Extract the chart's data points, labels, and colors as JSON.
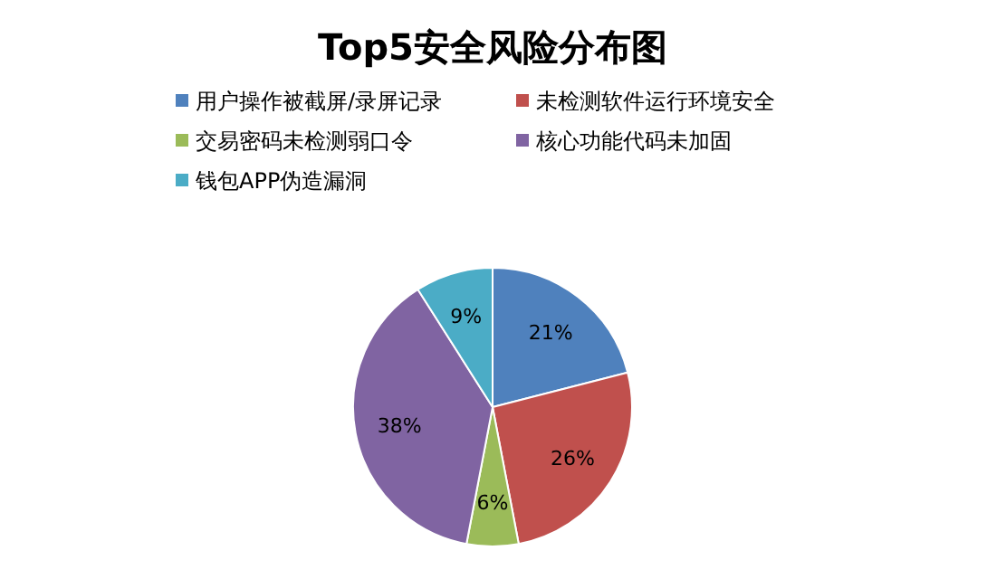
{
  "chart_data": {
    "type": "pie",
    "title": "Top5安全风险分布图",
    "categories": [
      "用户操作被截屏/录屏记录",
      "未检测软件运行环境安全",
      "交易密码未检测弱口令",
      "核心功能代码未加固",
      "钱包APP伪造漏洞"
    ],
    "values": [
      21,
      26,
      6,
      38,
      9
    ],
    "colors": [
      "#4f81bd",
      "#c0504d",
      "#9bbb59",
      "#8064a2",
      "#4bacc6"
    ],
    "value_labels": [
      "21%",
      "26%",
      "6%",
      "38%",
      "9%"
    ],
    "legend": "top"
  }
}
